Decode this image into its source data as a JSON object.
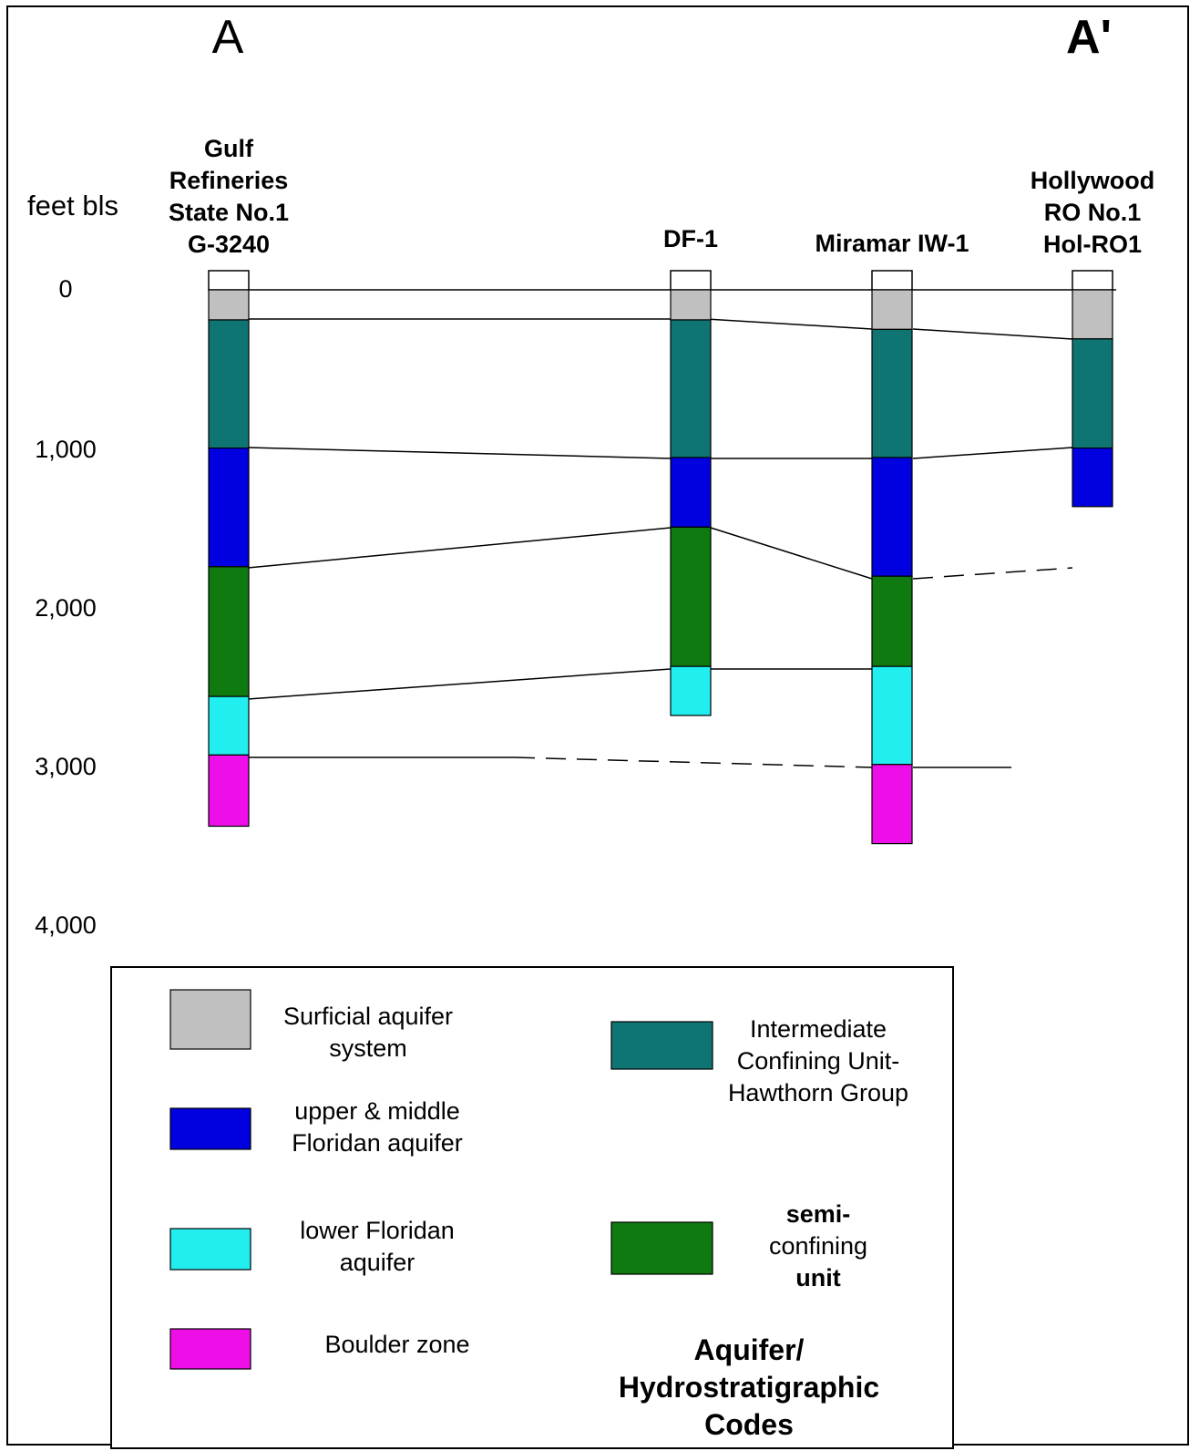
{
  "section": {
    "start_label": "A",
    "end_label": "A'"
  },
  "depth_axis": {
    "unit_label": "feet bls",
    "ticks": [
      "0",
      "1,000",
      "2,000",
      "3,000",
      "4,000"
    ]
  },
  "wells": [
    {
      "name_lines": [
        "Gulf",
        "Refineries",
        "State No.1",
        "G-3240"
      ],
      "layers": [
        {
          "unit": "surficial",
          "top": 0,
          "bottom": 190
        },
        {
          "unit": "intermediate",
          "top": 190,
          "bottom": 1000
        },
        {
          "unit": "upper_middle_floridan",
          "top": 1000,
          "bottom": 1750
        },
        {
          "unit": "semi_confining",
          "top": 1750,
          "bottom": 2570
        },
        {
          "unit": "lower_floridan",
          "top": 2570,
          "bottom": 2940
        },
        {
          "unit": "boulder",
          "top": 2940,
          "bottom": 3390
        }
      ]
    },
    {
      "name_lines": [
        "DF-1"
      ],
      "layers": [
        {
          "unit": "surficial",
          "top": 0,
          "bottom": 190
        },
        {
          "unit": "intermediate",
          "top": 190,
          "bottom": 1060
        },
        {
          "unit": "upper_middle_floridan",
          "top": 1060,
          "bottom": 1500
        },
        {
          "unit": "semi_confining",
          "top": 1500,
          "bottom": 2380
        },
        {
          "unit": "lower_floridan",
          "top": 2380,
          "bottom": 2690
        }
      ]
    },
    {
      "name_lines": [
        "Miramar IW-1"
      ],
      "layers": [
        {
          "unit": "surficial",
          "top": 0,
          "bottom": 250
        },
        {
          "unit": "intermediate",
          "top": 250,
          "bottom": 1060
        },
        {
          "unit": "upper_middle_floridan",
          "top": 1060,
          "bottom": 1810
        },
        {
          "unit": "semi_confining",
          "top": 1810,
          "bottom": 2380
        },
        {
          "unit": "lower_floridan",
          "top": 2380,
          "bottom": 3000
        },
        {
          "unit": "boulder",
          "top": 3000,
          "bottom": 3500
        }
      ]
    },
    {
      "name_lines": [
        "Hollywood",
        "RO No.1",
        "Hol-RO1"
      ],
      "layers": [
        {
          "unit": "surficial",
          "top": 0,
          "bottom": 310
        },
        {
          "unit": "intermediate",
          "top": 310,
          "bottom": 1000
        },
        {
          "unit": "upper_middle_floridan",
          "top": 1000,
          "bottom": 1370
        }
      ]
    }
  ],
  "legend": {
    "title_lines": [
      "Aquifer/",
      "Hydrostratigraphic",
      "Codes"
    ],
    "items": [
      {
        "unit": "surficial",
        "color": "#c0c0c0",
        "label_lines": [
          "Surficial aquifer",
          "system"
        ],
        "bold": false
      },
      {
        "unit": "upper_middle_floridan",
        "color": "#0000e0",
        "label_lines": [
          "upper & middle",
          "Floridan aquifer"
        ],
        "bold": false
      },
      {
        "unit": "lower_floridan",
        "color": "#22eef0",
        "label_lines": [
          "lower Floridan",
          "aquifer"
        ],
        "bold": false
      },
      {
        "unit": "boulder",
        "color": "#ee0ee8",
        "label_lines": [
          "Boulder zone"
        ],
        "bold": false
      },
      {
        "unit": "intermediate",
        "color": "#0f7572",
        "label_lines": [
          "Intermediate",
          "Confining Unit-",
          "Hawthorn Group"
        ],
        "bold": false
      },
      {
        "unit": "semi_confining",
        "color": "#0e7a10",
        "label_lines": [
          "semi-",
          "confining",
          "unit"
        ],
        "bold": true
      }
    ]
  }
}
